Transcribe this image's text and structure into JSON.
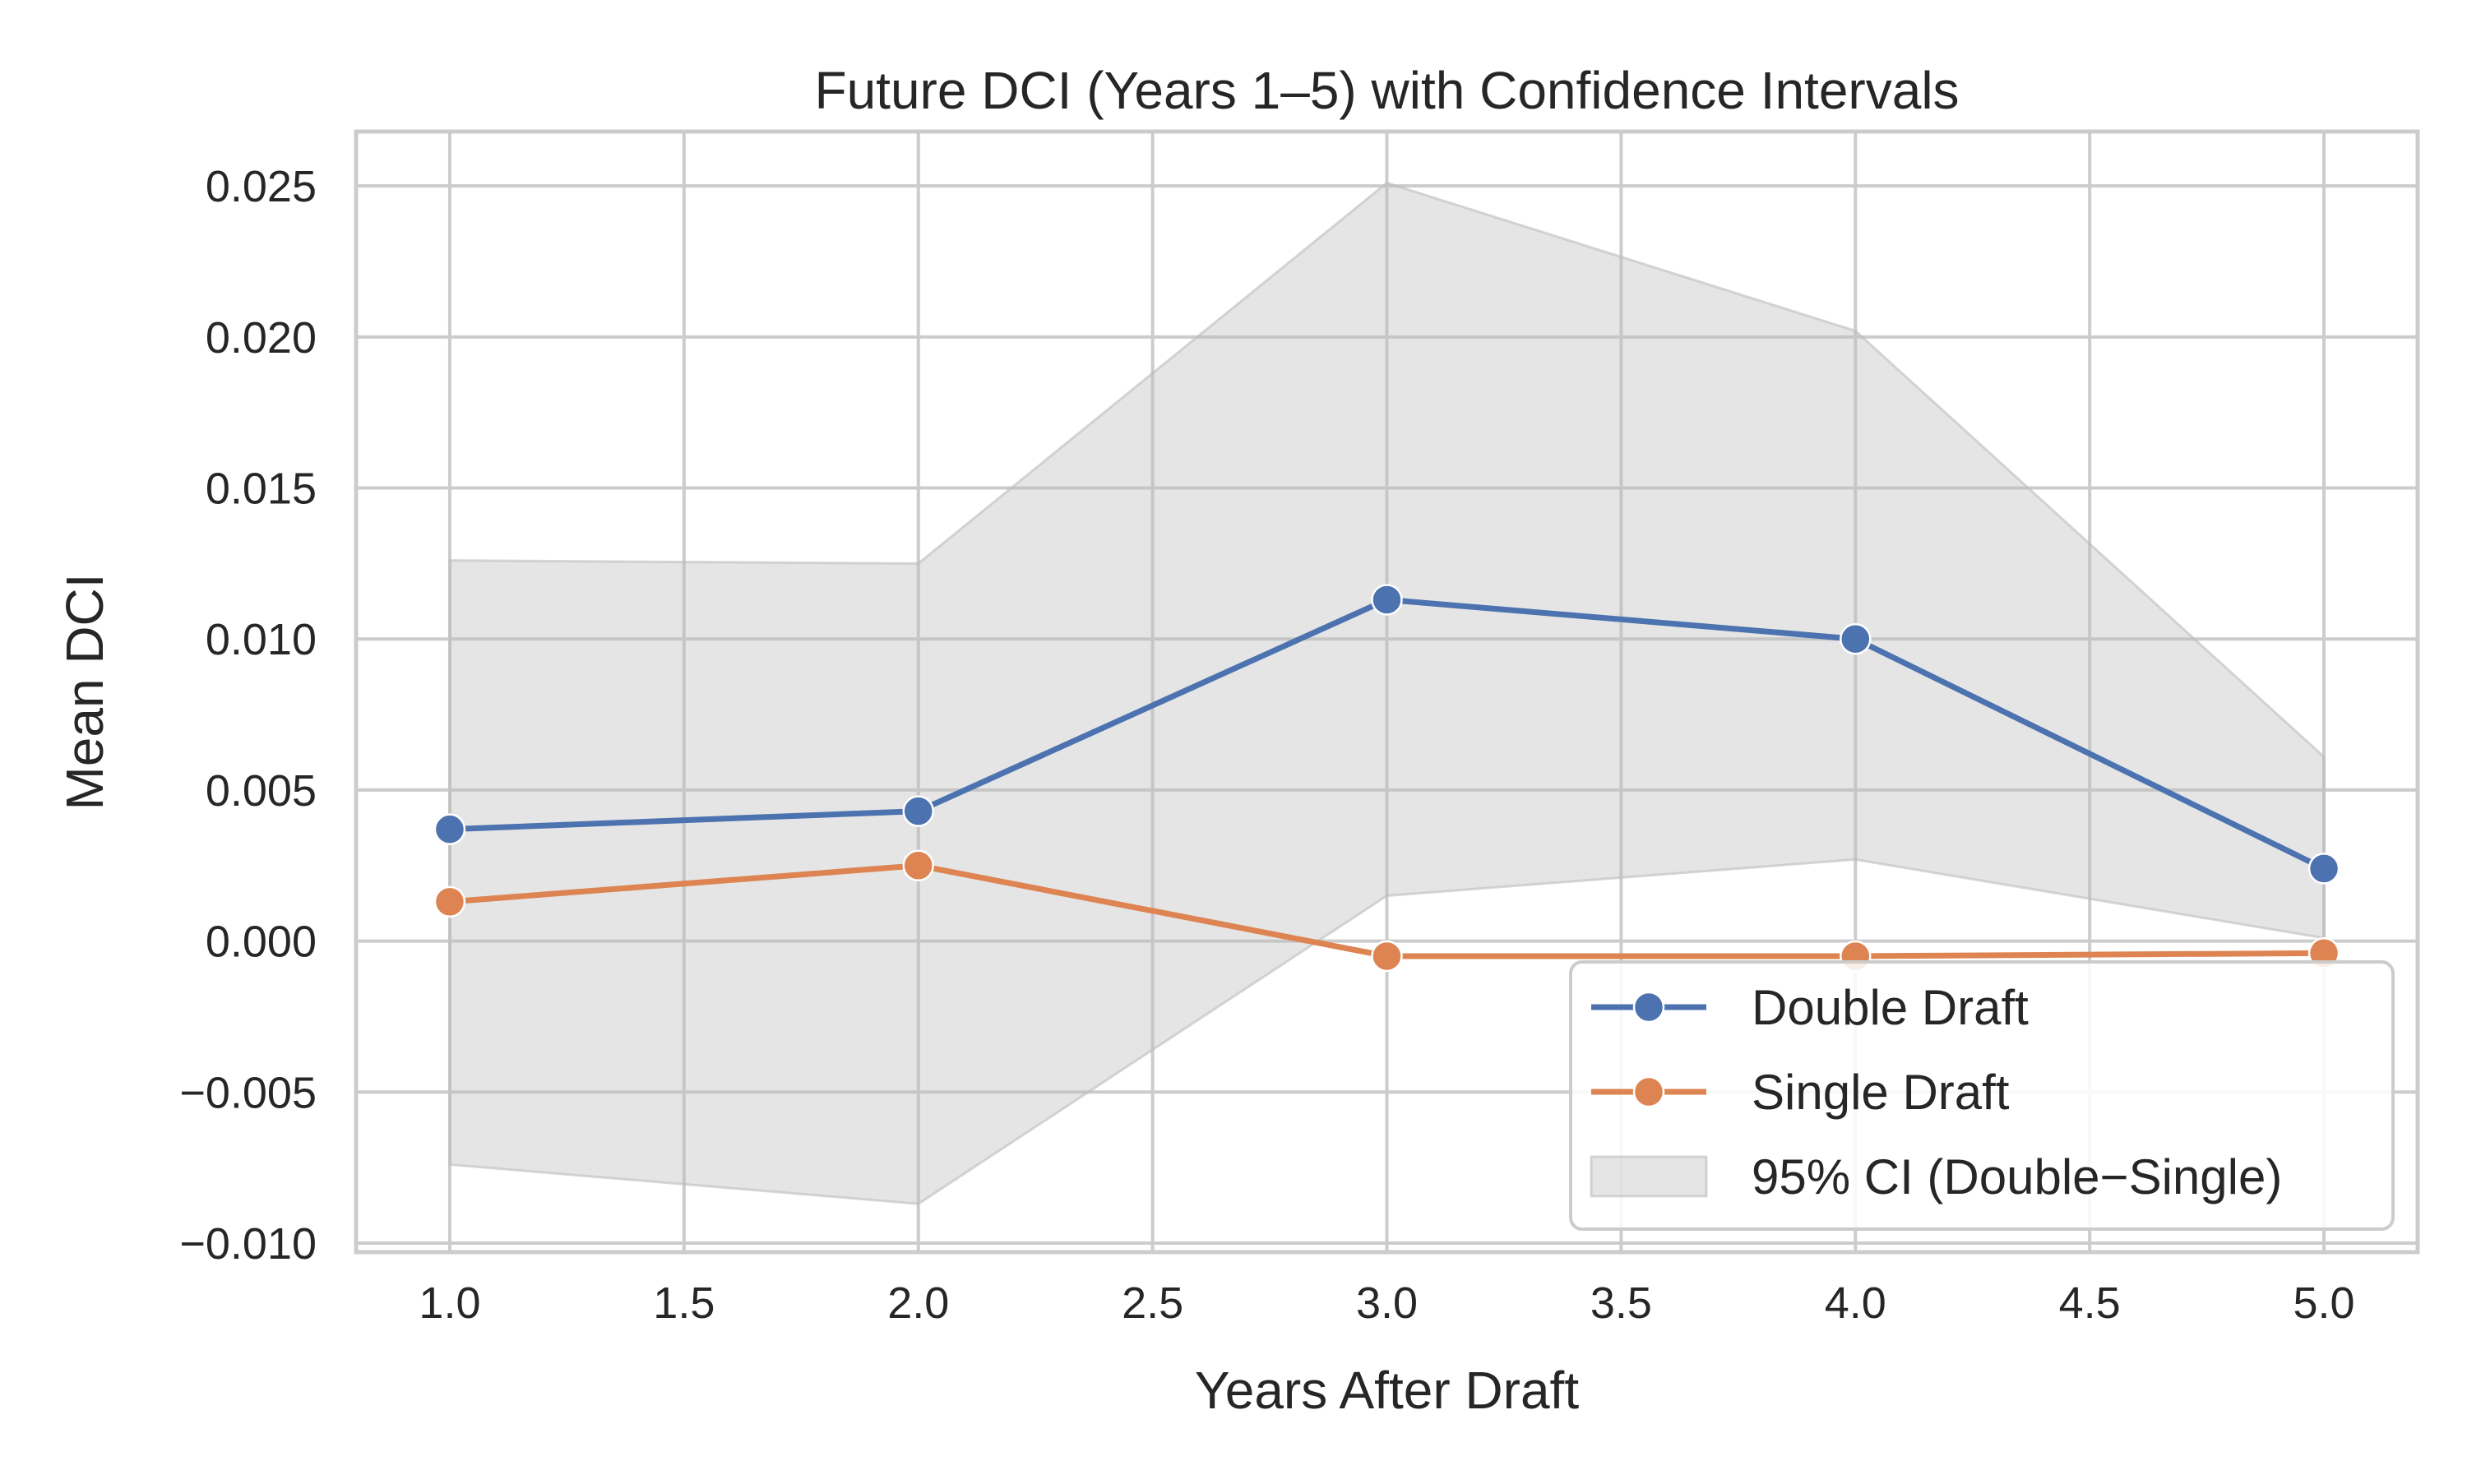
{
  "chart_data": {
    "type": "line",
    "title": "Future DCI (Years 1–5) with Confidence Intervals",
    "xlabel": "Years After Draft",
    "ylabel": "Mean DCI",
    "xlim": [
      0.8,
      5.2
    ],
    "ylim": [
      -0.0103,
      0.0268
    ],
    "x_ticks": [
      1.0,
      1.5,
      2.0,
      2.5,
      3.0,
      3.5,
      4.0,
      4.5,
      5.0
    ],
    "x_tick_labels": [
      "1.0",
      "1.5",
      "2.0",
      "2.5",
      "3.0",
      "3.5",
      "4.0",
      "4.5",
      "5.0"
    ],
    "y_ticks": [
      -0.01,
      -0.005,
      0.0,
      0.005,
      0.01,
      0.015,
      0.02,
      0.025
    ],
    "y_tick_labels": [
      "−0.010",
      "−0.005",
      "0.000",
      "0.005",
      "0.010",
      "0.015",
      "0.020",
      "0.025"
    ],
    "grid": true,
    "legend_position": "lower-right",
    "x": [
      1,
      2,
      3,
      4,
      5
    ],
    "series": [
      {
        "name": "Double Draft",
        "values": [
          0.0037,
          0.0043,
          0.0113,
          0.01,
          0.0024
        ],
        "color": "#4c72b0",
        "marker": "circle"
      },
      {
        "name": "Single Draft",
        "values": [
          0.0013,
          0.0025,
          -0.0005,
          -0.0005,
          -0.0004
        ],
        "color": "#dd8452",
        "marker": "circle"
      }
    ],
    "band": {
      "name": "95% CI (Double−Single)",
      "lower": [
        -0.0074,
        -0.0087,
        0.0015,
        0.0027,
        0.0001
      ],
      "upper": [
        0.0126,
        0.0125,
        0.0251,
        0.0202,
        0.0061
      ],
      "color": "#bdbdbd"
    },
    "grid_color": "#cccccc",
    "spine_color": "#cccccc"
  }
}
